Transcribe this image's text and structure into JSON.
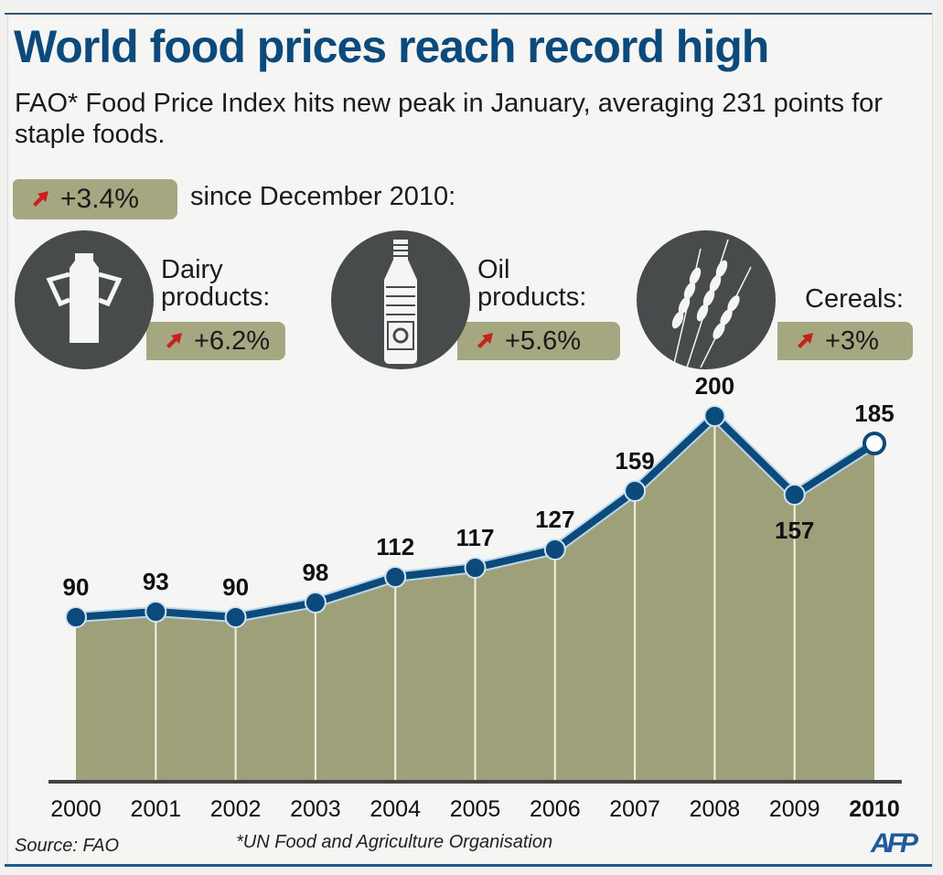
{
  "header": {
    "title": "World food prices reach record high",
    "subtitle": "FAO* Food Price Index hits new peak in January, averaging 231 points for staple foods."
  },
  "summary": {
    "change": "+3.4%",
    "since_text": "since December 2010:",
    "arrow_icon": "arrow-up-right-icon"
  },
  "categories": [
    {
      "label_line1": "Dairy",
      "label_line2": "products:",
      "change": "+6.2%",
      "icon": "milk-can-icon"
    },
    {
      "label_line1": "Oil",
      "label_line2": "products:",
      "change": "+5.6%",
      "icon": "oil-bottle-icon"
    },
    {
      "label_line1": "",
      "label_line2": "Cereals:",
      "change": "+3%",
      "icon": "wheat-icon"
    }
  ],
  "colors": {
    "title": "#0d4a7c",
    "line": "#0d4a7c",
    "area": "#9ea07a",
    "badge": "#a5a780",
    "arrow": "#c8201e",
    "icon_circle": "#474b4b"
  },
  "chart_data": {
    "type": "area",
    "title": "FAO Food Price Index",
    "xlabel": "",
    "ylabel": "",
    "categories": [
      "2000",
      "2001",
      "2002",
      "2003",
      "2004",
      "2005",
      "2006",
      "2007",
      "2008",
      "2009",
      "2010"
    ],
    "values": [
      90,
      93,
      90,
      98,
      112,
      117,
      127,
      159,
      200,
      157,
      185
    ],
    "data_labels": [
      "90",
      "93",
      "90",
      "98",
      "112",
      "117",
      "127",
      "159",
      "200",
      "157",
      "185"
    ],
    "highlight_last": true,
    "ylim": [
      0,
      210
    ],
    "grid": false,
    "legend": "none"
  },
  "footer": {
    "source": "Source: FAO",
    "note": "*UN Food and Agriculture Organisation",
    "logo": "AFP"
  }
}
